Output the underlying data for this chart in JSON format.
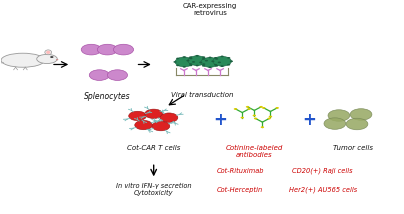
{
  "bg_color": "#ffffff",
  "fig_width": 4.04,
  "fig_height": 2.14,
  "dpi": 100,
  "retrovirus_label": "CAR-expressing\nretrovirus",
  "viral_transduction_label": "Viral transduction",
  "car_t_label": "Cot-CAR T cells",
  "cotinine_label": "Cotinine-labeled\nantibodies",
  "tumor_label": "Tumor cells",
  "splenocytes_label": "Splenocytes",
  "vitro_label": "In vitro IFN-γ secretion\nCytotoxicity",
  "cot_rituximab_label": "Cot-Rituximab",
  "cot_herceptin_label": "Cot-Herceptin",
  "cd20_label": "CD20(+) Raji cells",
  "her2_label": "Her2(+) AU565 cells",
  "red_color": "#cc0000",
  "black_color": "#111111",
  "purple_cell_color": "#cc88cc",
  "red_t_cell_color": "#dd2222",
  "cyan_arm_color": "#77bbbb",
  "green_antibody_color": "#33aa33",
  "yellow_dot_color": "#ddcc00",
  "olive_tumor_color": "#99aa66",
  "dark_green": "#2a8a5a",
  "plate_color": "#eeeecc",
  "blue_plus": "#2255cc"
}
